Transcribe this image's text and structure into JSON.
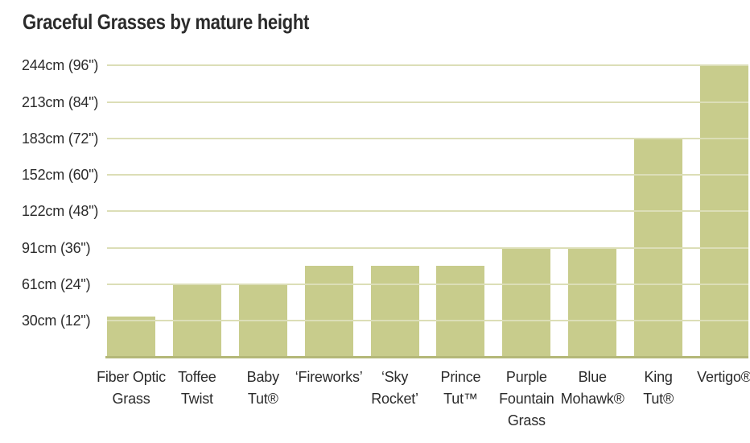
{
  "title": "Graceful Grasses by mature height",
  "colors": {
    "bar_fill": "#c8cc8c",
    "gridline": "#dcdeb7",
    "axis_line": "#b4b878",
    "text": "#2b2b2b",
    "background": "#ffffff"
  },
  "chart_data": {
    "type": "bar",
    "title": "Graceful Grasses by mature height",
    "xlabel": "",
    "ylabel": "mature height",
    "ylim": [
      0,
      244
    ],
    "grid": true,
    "legend": false,
    "bar_color": "#c8cc8c",
    "categories": [
      "Fiber Optic Grass",
      "Toffee Twist",
      "Baby Tut®",
      "‘Fireworks’",
      "‘Sky Rocket’",
      "Prince Tut™",
      "Purple Fountain Grass",
      "Blue Mohawk®",
      "King Tut®",
      "Vertigo®"
    ],
    "category_lines": [
      [
        "Fiber Optic",
        "Grass"
      ],
      [
        "Toffee",
        "Twist"
      ],
      [
        "Baby",
        "Tut®"
      ],
      [
        "‘Fireworks’"
      ],
      [
        "‘Sky",
        "Rocket’"
      ],
      [
        "Prince",
        "Tut™"
      ],
      [
        "Purple",
        "Fountain",
        "Grass"
      ],
      [
        "Blue",
        "Mohawk®"
      ],
      [
        "King",
        "Tut®"
      ],
      [
        "Vertigo®"
      ]
    ],
    "values_cm": [
      34,
      61,
      61,
      76,
      76,
      76,
      91,
      91,
      183,
      244
    ],
    "values_in": [
      13,
      24,
      24,
      30,
      30,
      30,
      36,
      36,
      72,
      96
    ],
    "y_ticks": [
      {
        "cm": 244,
        "label": "244cm (96\")"
      },
      {
        "cm": 213,
        "label": "213cm (84\")"
      },
      {
        "cm": 183,
        "label": "183cm (72\")"
      },
      {
        "cm": 152,
        "label": "152cm (60\")"
      },
      {
        "cm": 122,
        "label": "122cm (48\")"
      },
      {
        "cm": 91,
        "label": "91cm (36\")"
      },
      {
        "cm": 61,
        "label": "61cm (24\")"
      },
      {
        "cm": 30,
        "label": "30cm (12\")"
      }
    ]
  }
}
